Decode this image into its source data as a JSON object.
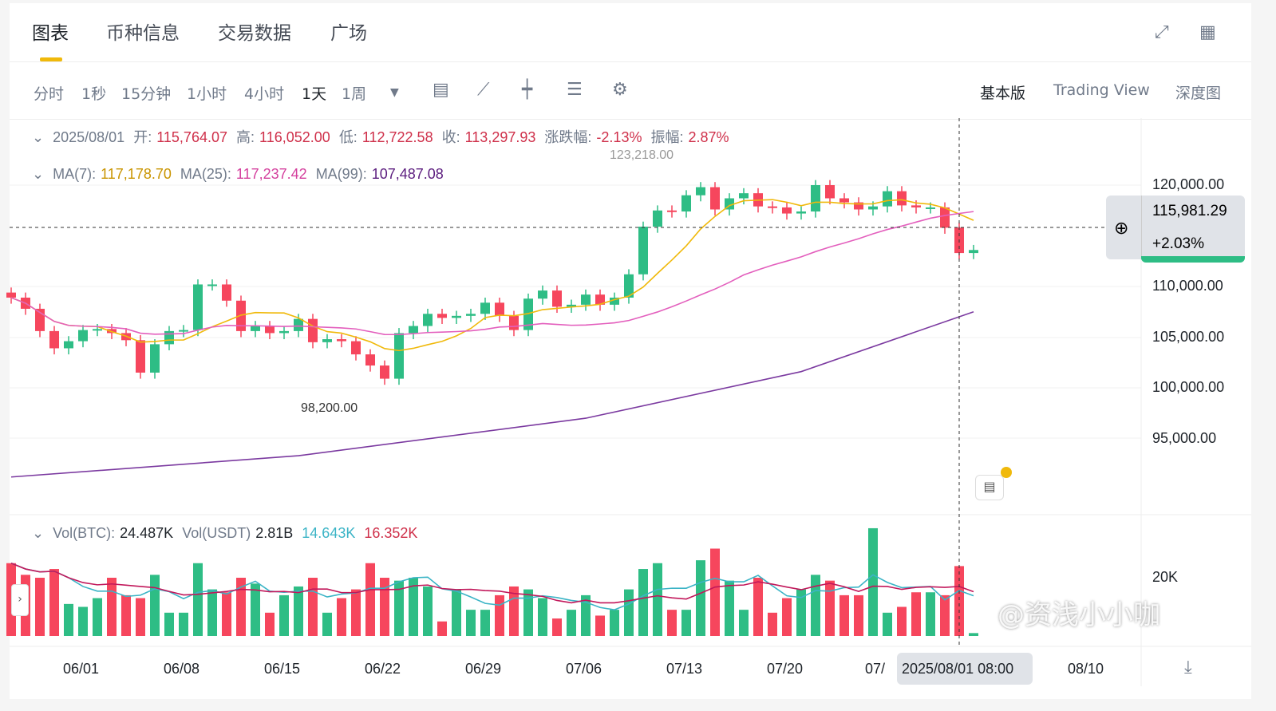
{
  "tabs": [
    "图表",
    "币种信息",
    "交易数据",
    "广场"
  ],
  "timeframes": [
    "分时",
    "1秒",
    "15分钟",
    "1小时",
    "4小时",
    "1天",
    "1周"
  ],
  "active_timeframe": "1天",
  "views": [
    "基本版",
    "Trading View",
    "深度图"
  ],
  "active_view": "基本版",
  "ohlc_legend": {
    "date": "2025/08/01",
    "open_label": "开:",
    "open": "115,764.07",
    "high_label": "高:",
    "high": "116,052.00",
    "low_label": "低:",
    "low": "112,722.58",
    "close_label": "收:",
    "close": "113,297.93",
    "change_label": "涨跌幅:",
    "change": "-2.13%",
    "amp_label": "振幅:",
    "amp": "2.87%"
  },
  "ma_legend": {
    "ma7_label": "MA(7):",
    "ma7": "117,178.70",
    "ma25_label": "MA(25):",
    "ma25": "117,237.42",
    "ma99_label": "MA(99):",
    "ma99": "107,487.08"
  },
  "vol_legend": {
    "btc_label": "Vol(BTC):",
    "btc": "24.487K",
    "usdt_label": "Vol(USDT)",
    "usdt": "2.81B",
    "ma5": "14.643K",
    "ma10": "16.352K"
  },
  "price_axis": [
    "120,000.00",
    "110,000.00",
    "105,000.00",
    "100,000.00",
    "95,000.00"
  ],
  "vol_axis": [
    "20K"
  ],
  "current_price": {
    "price": "115,981.29",
    "change": "+2.03%"
  },
  "annotations": {
    "high": "123,218.00",
    "low": "98,200.00"
  },
  "date_axis": [
    "06/01",
    "06/08",
    "06/15",
    "06/22",
    "06/29",
    "07/06",
    "07/13",
    "07/20",
    "07/",
    "08/10"
  ],
  "crosshair_date": "2025/08/01 08:00",
  "watermark": "@资浅小小咖",
  "colors": {
    "up": "#2ebd85",
    "down": "#f6465d",
    "ma7": "#f0b90b",
    "ma25": "#e35fbd",
    "ma99": "#7b3aa0"
  },
  "chart_data": {
    "type": "candlestick",
    "start_date": "05/27",
    "closes": [
      108.9,
      107.8,
      105.6,
      103.9,
      104.6,
      105.7,
      105.8,
      105.4,
      104.7,
      101.5,
      104.3,
      105.6,
      105.7,
      110.2,
      110.2,
      108.6,
      105.6,
      106.1,
      105.4,
      105.6,
      106.8,
      104.5,
      104.8,
      104.6,
      103.3,
      102.2,
      100.9,
      105.4,
      106.1,
      107.3,
      106.9,
      107.1,
      107.3,
      108.4,
      107.1,
      105.7,
      108.8,
      109.6,
      108.0,
      108.2,
      109.2,
      108.2,
      108.9,
      111.2,
      115.9,
      117.5,
      117.4,
      119.0,
      119.8,
      117.6,
      118.7,
      119.2,
      117.9,
      117.8,
      117.2,
      117.4,
      120.0,
      118.7,
      118.3,
      117.6,
      117.9,
      119.4,
      118.0,
      117.8,
      117.8,
      115.8,
      113.3,
      113.6
    ],
    "volumes_k": [
      25,
      21,
      20,
      23,
      11,
      10,
      13,
      20,
      14,
      13,
      21,
      8,
      8,
      25,
      16,
      15,
      20,
      18,
      8,
      14,
      17,
      20,
      8,
      13,
      16,
      25,
      20,
      19,
      20,
      17,
      5,
      16,
      9,
      9,
      14,
      17,
      16,
      13,
      6,
      9,
      14,
      7,
      9,
      16,
      23,
      25,
      9,
      9,
      26,
      30,
      19,
      9,
      20,
      8,
      13,
      16,
      21,
      19,
      14,
      14,
      37,
      8,
      10,
      15,
      15,
      14,
      24,
      1
    ],
    "ma99_points": [
      [
        0,
        91.2
      ],
      [
        20,
        93.3
      ],
      [
        40,
        97.0
      ],
      [
        55,
        101.6
      ],
      [
        67,
        107.5
      ]
    ],
    "unit": "thousand USDT"
  }
}
